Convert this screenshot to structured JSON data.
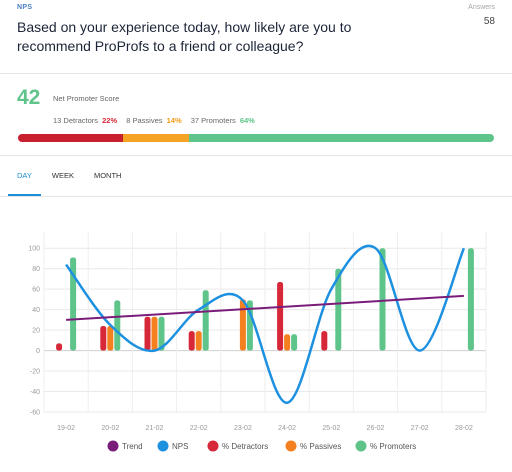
{
  "header": {
    "tag": "NPS",
    "question": "Based on your experience today, how likely are you to recommend ProProfs to a friend or colleague?",
    "answers_label": "Answers",
    "answers_value": "58"
  },
  "summary": {
    "score": "42",
    "score_label": "Net Promoter Score",
    "detractors_text": "13 Detractors",
    "detractors_pct": "22%",
    "passives_text": "8 Passives",
    "passives_pct": "14%",
    "promoters_text": "37 Promoters",
    "promoters_pct": "64%",
    "bar_fractions": {
      "detractors": 0.22,
      "passives": 0.14,
      "promoters": 0.64
    },
    "colors": {
      "detractors": "#c8202f",
      "passives": "#f4a325",
      "promoters": "#5ec48a"
    }
  },
  "tabs": [
    {
      "label": "DAY",
      "active": true
    },
    {
      "label": "WEEK",
      "active": false
    },
    {
      "label": "MONTH",
      "active": false
    }
  ],
  "chart_data": {
    "type": "bar",
    "categories": [
      "19-02",
      "20-02",
      "21-02",
      "22-02",
      "23-02",
      "24-02",
      "25-02",
      "26-02",
      "27-02",
      "28-02"
    ],
    "ylim": [
      -60,
      110
    ],
    "yticks": [
      -60,
      -40,
      -20,
      0,
      20,
      40,
      60,
      80,
      100
    ],
    "grid": true,
    "legend_position": "bottom",
    "series": [
      {
        "name": "% Detractors",
        "kind": "bar",
        "color": "#d62839",
        "values": [
          7,
          24,
          33,
          19,
          0,
          67,
          19,
          0,
          0,
          0
        ]
      },
      {
        "name": "% Passives",
        "kind": "bar",
        "color": "#f4801f",
        "values": [
          0,
          24,
          33,
          19,
          50,
          16,
          0,
          0,
          0,
          0
        ]
      },
      {
        "name": "% Promoters",
        "kind": "bar",
        "color": "#5ec48a",
        "values": [
          91,
          49,
          33,
          59,
          49,
          16,
          80,
          100,
          0,
          100
        ]
      },
      {
        "name": "NPS",
        "kind": "line",
        "color": "#1e90e0",
        "values": [
          84,
          25,
          0,
          40,
          49,
          -51,
          60,
          100,
          0,
          100
        ]
      },
      {
        "name": "Trend",
        "kind": "trend",
        "color": "#7a1d7a",
        "values": [
          30,
          32.6,
          35.2,
          37.8,
          40.4,
          43,
          45.6,
          48.2,
          50.8,
          53.4
        ]
      }
    ],
    "legend": [
      {
        "name": "Trend",
        "color": "#7a1d7a"
      },
      {
        "name": "NPS",
        "color": "#1e90e0"
      },
      {
        "name": "% Detractors",
        "color": "#d62839"
      },
      {
        "name": "% Passives",
        "color": "#f4801f"
      },
      {
        "name": "% Promoters",
        "color": "#5ec48a"
      }
    ]
  }
}
